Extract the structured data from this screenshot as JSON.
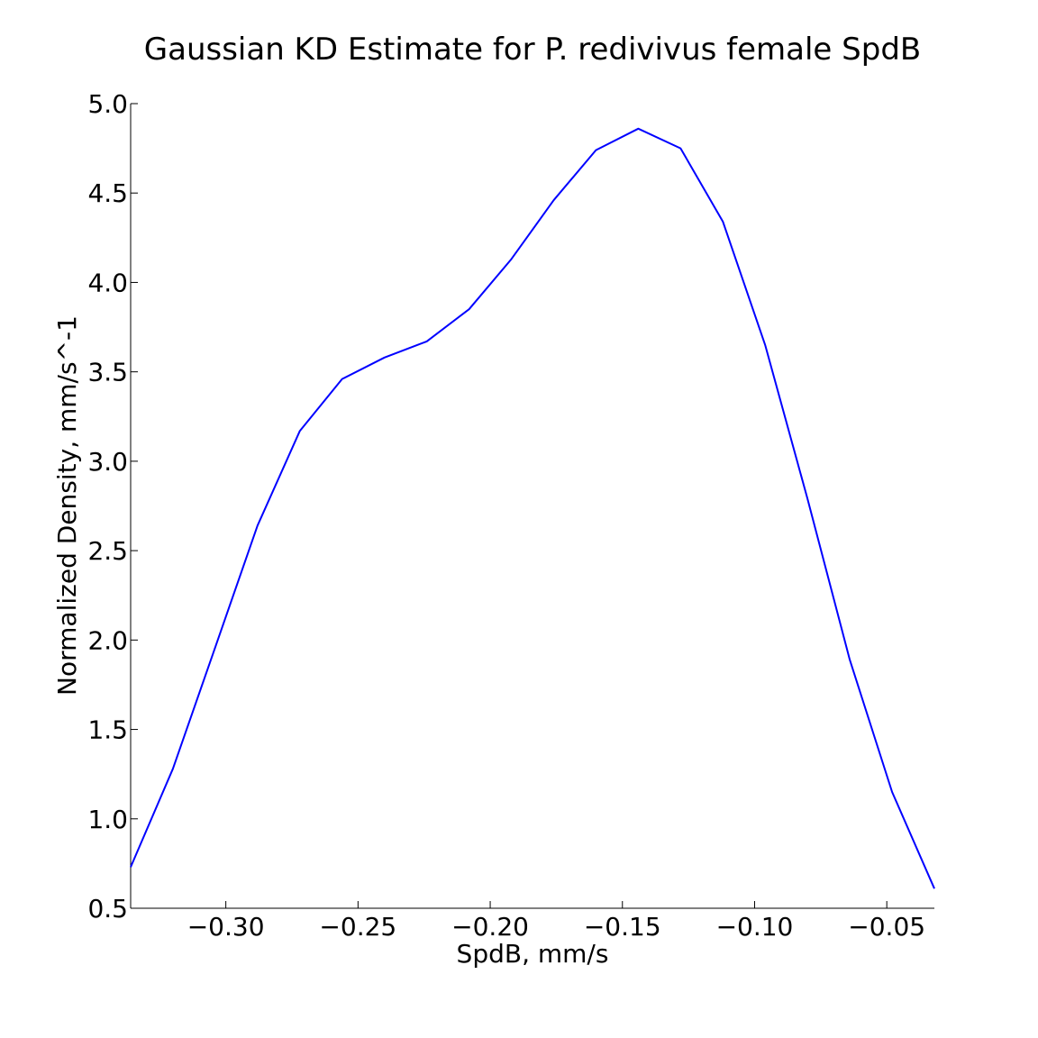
{
  "chart_data": {
    "type": "line",
    "title": "Gaussian KD Estimate for P. redivivus female SpdB",
    "xlabel": "SpdB, mm/s",
    "ylabel": "Normalized Density, mm/s^-1",
    "xlim": [
      -0.336,
      -0.032
    ],
    "ylim": [
      0.5,
      5.0
    ],
    "x_ticks": [
      -0.3,
      -0.25,
      -0.2,
      -0.15,
      -0.1,
      -0.05
    ],
    "x_tick_labels": [
      "−0.30",
      "−0.25",
      "−0.20",
      "−0.15",
      "−0.10",
      "−0.05"
    ],
    "y_ticks": [
      0.5,
      1.0,
      1.5,
      2.0,
      2.5,
      3.0,
      3.5,
      4.0,
      4.5,
      5.0
    ],
    "y_tick_labels": [
      "0.5",
      "1.0",
      "1.5",
      "2.0",
      "2.5",
      "3.0",
      "3.5",
      "4.0",
      "4.5",
      "5.0"
    ],
    "grid": false,
    "series": [
      {
        "color": "#0000ff",
        "x": [
          -0.336,
          -0.32,
          -0.304,
          -0.288,
          -0.272,
          -0.256,
          -0.24,
          -0.224,
          -0.208,
          -0.192,
          -0.176,
          -0.16,
          -0.144,
          -0.128,
          -0.112,
          -0.096,
          -0.08,
          -0.064,
          -0.048,
          -0.032
        ],
        "y": [
          0.73,
          1.28,
          1.96,
          2.64,
          3.17,
          3.46,
          3.58,
          3.67,
          3.85,
          4.13,
          4.46,
          4.74,
          4.86,
          4.75,
          4.34,
          3.65,
          2.79,
          1.89,
          1.15,
          0.61
        ]
      }
    ]
  }
}
